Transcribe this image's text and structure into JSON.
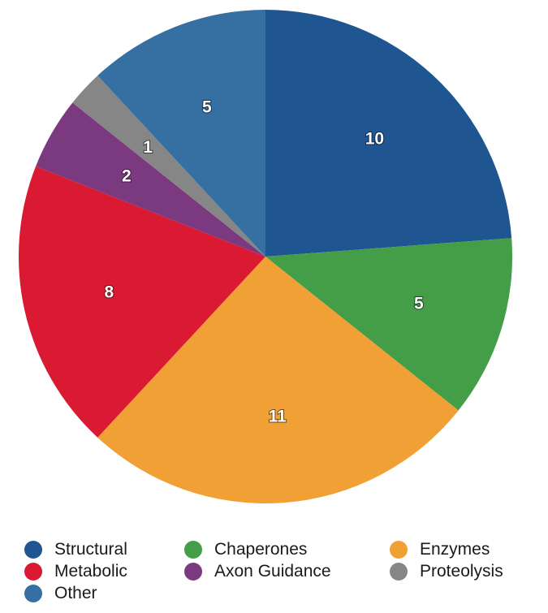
{
  "chart_data": {
    "type": "pie",
    "title": "",
    "start_angle_deg": 0,
    "direction": "clockwise",
    "slices": [
      {
        "label": "Structural",
        "value": 10,
        "color": "#1f5590"
      },
      {
        "label": "Chaperones",
        "value": 5,
        "color": "#449e48"
      },
      {
        "label": "Enzymes",
        "value": 11,
        "color": "#f0a035"
      },
      {
        "label": "Metabolic",
        "value": 8,
        "color": "#d91a32"
      },
      {
        "label": "Axon Guidance",
        "value": 2,
        "color": "#7b3a80"
      },
      {
        "label": "Proteolysis",
        "value": 1,
        "color": "#868686"
      },
      {
        "label": "Other",
        "value": 5,
        "color": "#3670a3"
      }
    ],
    "data_labels_shown": true,
    "legend_placement": "bottom"
  },
  "legend": {
    "items": [
      {
        "label": "Structural",
        "color": "#1f5590"
      },
      {
        "label": "Chaperones",
        "color": "#449e48"
      },
      {
        "label": "Enzymes",
        "color": "#f0a035"
      },
      {
        "label": "Metabolic",
        "color": "#d91a32"
      },
      {
        "label": "Axon Guidance",
        "color": "#7b3a80"
      },
      {
        "label": "Proteolysis",
        "color": "#868686"
      },
      {
        "label": "Other",
        "color": "#3670a3"
      }
    ]
  }
}
